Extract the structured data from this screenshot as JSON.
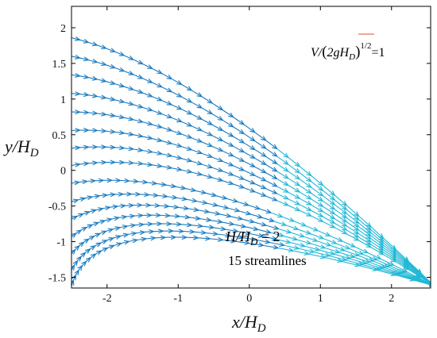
{
  "chart_data": {
    "type": "quiver",
    "title": "",
    "xlabel": {
      "main": "x/H",
      "sub": "D"
    },
    "ylabel": {
      "main": "y/H",
      "sub": "D"
    },
    "xlim": [
      -2.5,
      2.55
    ],
    "ylim": [
      -1.65,
      2.3
    ],
    "xticks": [
      "-2",
      "-1",
      "0",
      "1",
      "2"
    ],
    "yticks": [
      "2",
      "1.5",
      "1",
      "0.5",
      "0",
      "-0.5",
      "-1",
      "-1.5"
    ],
    "grid": false,
    "legend": "none",
    "reference_vector": {
      "text": "V/(2gH_D)^{1/2} = 1",
      "formula": {
        "v": "V/",
        "paren_open": "(",
        "g": "2gH",
        "sub": "D",
        "paren_close": ")",
        "power": "1/2",
        "equals": "=1"
      },
      "color": "#e8704f"
    },
    "annotations": [
      {
        "id": "head-ratio",
        "main": "H/H",
        "sub": "D",
        "rest": " = 2"
      },
      {
        "id": "streamline-count",
        "text": "15 streamlines"
      }
    ],
    "streamlines": {
      "count": 15,
      "start_x": -2.5,
      "start_y": [
        1.86,
        1.6,
        1.34,
        1.08,
        0.82,
        0.56,
        0.31,
        0.07,
        -0.18,
        -0.44,
        -0.68,
        -0.93,
        -1.17,
        -1.4,
        -1.62
      ],
      "crest": {
        "x": 0.0,
        "y": 0.0
      },
      "exit_y_at_xmax": -1.62
    },
    "colors": {
      "arrow": "#1a7bc0",
      "arrow_dense": "#22b8d6",
      "axis": "#000000"
    }
  }
}
